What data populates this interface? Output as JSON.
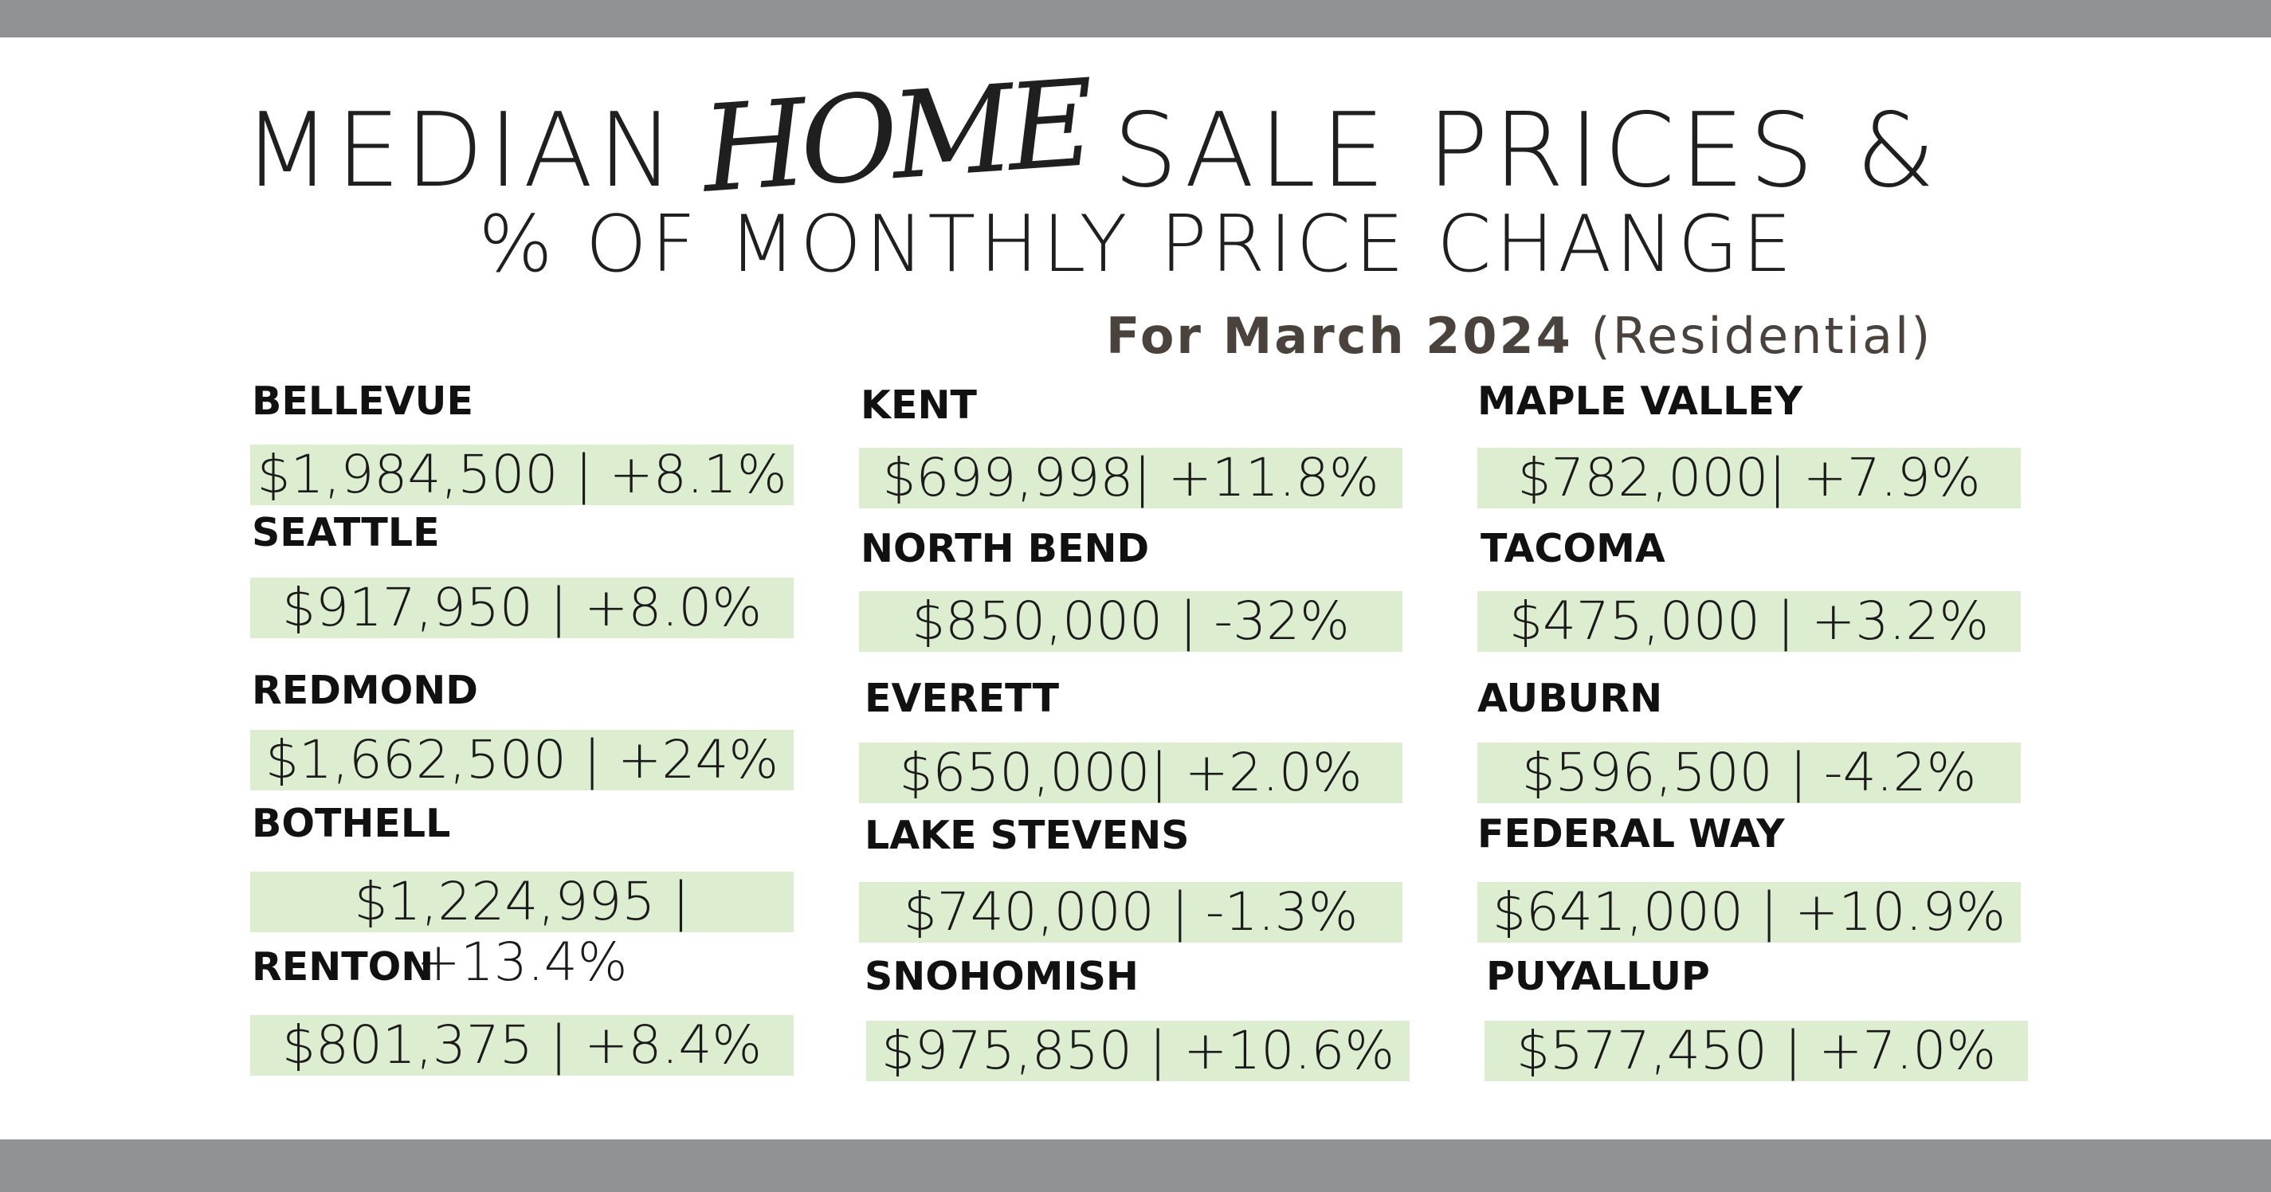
{
  "header": {
    "title_start": "MEDIAN",
    "title_script": "HOME",
    "title_end": "SALE PRICES &",
    "subtitle": "% OF MONTHLY PRICE CHANGE",
    "period": "For March 2024",
    "note": "(Residential)"
  },
  "columns": [
    [
      {
        "name": "BELLEVUE",
        "value": "$1,984,500 | +8.1%"
      },
      {
        "name": "SEATTLE",
        "value": "$917,950 | +8.0%"
      },
      {
        "name": "REDMOND",
        "value": "$1,662,500 | +24%"
      },
      {
        "name": "BOTHELL",
        "value": "$1,224,995 | +13.4%"
      },
      {
        "name": "RENTON",
        "value": "$801,375 | +8.4%"
      }
    ],
    [
      {
        "name": "KENT",
        "value": "$699,998| +11.8%"
      },
      {
        "name": "NORTH BEND",
        "value": "$850,000 | -32%"
      },
      {
        "name": "EVERETT",
        "value": "$650,000| +2.0%"
      },
      {
        "name": "LAKE STEVENS",
        "value": "$740,000 | -1.3%"
      },
      {
        "name": "SNOHOMISH",
        "value": "$975,850 | +10.6%"
      }
    ],
    [
      {
        "name": "MAPLE VALLEY",
        "value": "$782,000| +7.9%"
      },
      {
        "name": "TACOMA",
        "value": "$475,000 | +3.2%"
      },
      {
        "name": "AUBURN",
        "value": "$596,500 | -4.2%"
      },
      {
        "name": "FEDERAL WAY",
        "value": "$641,000 | +10.9%"
      },
      {
        "name": "PUYALLUP",
        "value": "$577,450 | +7.0%"
      }
    ]
  ]
}
